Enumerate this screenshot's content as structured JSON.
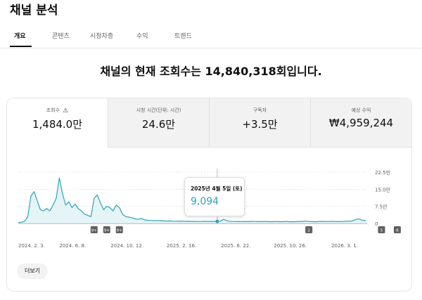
{
  "page": {
    "title": "채널 분석"
  },
  "tabs": [
    {
      "label": "개요",
      "active": true
    },
    {
      "label": "콘텐츠"
    },
    {
      "label": "시청자층"
    },
    {
      "label": "수익"
    },
    {
      "label": "트렌드"
    }
  ],
  "headline": "채널의 현재 조회수는 14,840,318회입니다.",
  "metrics": [
    {
      "label": "조회수",
      "value": "1,484.0만",
      "icon": "warning-icon"
    },
    {
      "label": "시청 시간(단위: 시간)",
      "value": "24.6만"
    },
    {
      "label": "구독자",
      "value": "+3.5만"
    },
    {
      "label": "예상 수익",
      "value": "₩4,959,244"
    }
  ],
  "tooltip": {
    "date": "2025년 4월 5일 (토)",
    "value": "9,094"
  },
  "more_button": "더보기",
  "colors": {
    "line": "#2ea3b7",
    "fill": "#dff1f5",
    "badge": "#606060"
  },
  "chart_data": {
    "type": "area",
    "y_ticks": [
      "22.5만",
      "15.0만",
      "7.5만",
      "0"
    ],
    "x_ticks": [
      "2024. 2. 3.",
      "2024. 6. 8.",
      "2024. 10. 12.",
      "2025. 2. 16.",
      "2025. 6. 22.",
      "2025. 10. 26.",
      "2026. 3. 1."
    ],
    "ylim": [
      0,
      225000
    ],
    "series": [
      {
        "values": [
          4000,
          5000,
          10000,
          30000,
          120000,
          140000,
          100000,
          60000,
          55000,
          65000,
          55000,
          80000,
          110000,
          200000,
          130000,
          80000,
          95000,
          70000,
          85000,
          65000,
          55000,
          40000,
          35000,
          30000,
          110000,
          125000,
          90000,
          60000,
          75000,
          70000,
          55000,
          80000,
          70000,
          40000,
          30000,
          28000,
          25000,
          20000,
          18000,
          22000,
          15000,
          14000,
          13000,
          12000,
          13000,
          12000,
          11000,
          10000,
          11000,
          10000,
          10000,
          9500,
          10000,
          9000,
          9500,
          9000,
          9000,
          8500,
          9000,
          9500,
          9000,
          9200,
          9000,
          9094,
          10000,
          18000,
          12000,
          9000,
          8500,
          8500,
          8000,
          8500,
          8000,
          8000,
          9000,
          8500,
          8000,
          8000,
          8500,
          8000,
          7500,
          8000,
          8000,
          7500,
          8000,
          8000,
          7500,
          7500,
          8000,
          8000,
          9000,
          10000,
          8500,
          8000,
          7500,
          8000,
          9000,
          8000,
          8500,
          9000,
          8500,
          8000,
          8500,
          9000,
          10000,
          9500,
          12000,
          18000,
          20000,
          14000,
          12000
        ]
      }
    ],
    "highlight_index": 63,
    "badges": [
      {
        "label": "9+",
        "index": 24
      },
      {
        "label": "9+",
        "index": 28
      },
      {
        "label": "9+",
        "index": 32
      },
      {
        "label": "2",
        "index": 92
      },
      {
        "label": "5",
        "index": 115
      },
      {
        "label": "8",
        "index": 120
      }
    ]
  }
}
